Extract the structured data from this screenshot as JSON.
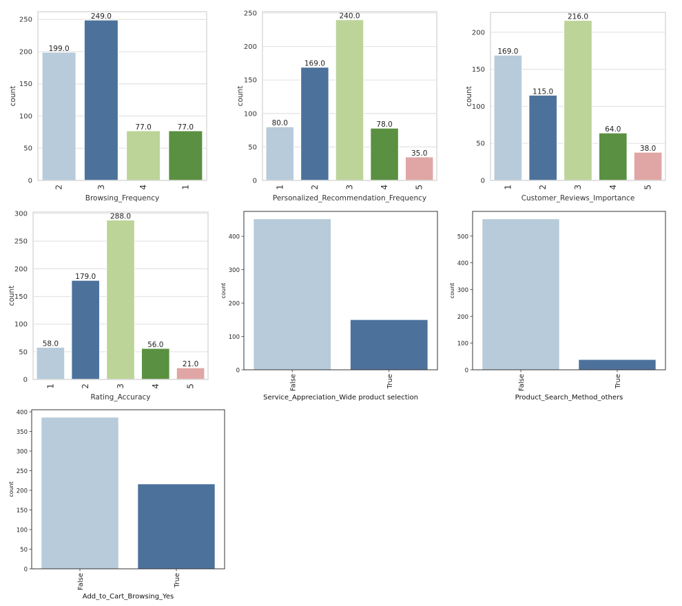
{
  "figure": {
    "colors": {
      "light_blue": "#b7cbda",
      "dark_blue": "#4c729c",
      "light_green": "#bcd498",
      "green": "#5a9041",
      "pink": "#e0a6a5",
      "grid": "#e3e3e3",
      "seaborn_spine": "#dcdcdc",
      "mpl_spine": "#333333"
    }
  },
  "chart_data": [
    {
      "type": "bar",
      "style": "seaborn-whitegrid",
      "title": "",
      "xlabel": "Browsing_Frequency",
      "ylabel": "count",
      "categories": [
        "2",
        "3",
        "4",
        "1"
      ],
      "values": [
        199,
        249,
        77,
        77
      ],
      "data_labels": [
        "199.0",
        "249.0",
        "77.0",
        "77.0"
      ],
      "colors": [
        "#b7cbda",
        "#4c729c",
        "#bcd498",
        "#5a9041"
      ],
      "yticks": [
        0,
        50,
        100,
        150,
        200,
        250
      ],
      "ylim": [
        0,
        262
      ],
      "grid": true
    },
    {
      "type": "bar",
      "style": "seaborn-whitegrid",
      "title": "",
      "xlabel": "Personalized_Recommendation_Frequency",
      "ylabel": "count",
      "categories": [
        "1",
        "2",
        "3",
        "4",
        "5"
      ],
      "values": [
        80,
        169,
        240,
        78,
        35
      ],
      "data_labels": [
        "80.0",
        "169.0",
        "240.0",
        "78.0",
        "35.0"
      ],
      "colors": [
        "#b7cbda",
        "#4c729c",
        "#bcd498",
        "#5a9041",
        "#e0a6a5"
      ],
      "yticks": [
        0,
        50,
        100,
        150,
        200,
        250
      ],
      "ylim": [
        0,
        252
      ],
      "grid": true
    },
    {
      "type": "bar",
      "style": "seaborn-whitegrid",
      "title": "",
      "xlabel": "Customer_Reviews_Importance",
      "ylabel": "count",
      "categories": [
        "1",
        "2",
        "3",
        "4",
        "5"
      ],
      "values": [
        169,
        115,
        216,
        64,
        38
      ],
      "data_labels": [
        "169.0",
        "115.0",
        "216.0",
        "64.0",
        "38.0"
      ],
      "colors": [
        "#b7cbda",
        "#4c729c",
        "#bcd498",
        "#5a9041",
        "#e0a6a5"
      ],
      "yticks": [
        0,
        50,
        100,
        150,
        200
      ],
      "ylim": [
        0,
        226.8
      ],
      "grid": true
    },
    {
      "type": "bar",
      "style": "seaborn-whitegrid",
      "title": "",
      "xlabel": "Rating_Accuracy",
      "ylabel": "count",
      "categories": [
        "1",
        "2",
        "3",
        "4",
        "5"
      ],
      "values": [
        58,
        179,
        288,
        56,
        21
      ],
      "data_labels": [
        "58.0",
        "179.0",
        "288.0",
        "56.0",
        "21.0"
      ],
      "colors": [
        "#b7cbda",
        "#4c729c",
        "#bcd498",
        "#5a9041",
        "#e0a6a5"
      ],
      "yticks": [
        0,
        50,
        100,
        150,
        200,
        250,
        300
      ],
      "ylim": [
        0,
        302.4
      ],
      "grid": true
    },
    {
      "type": "bar",
      "style": "matplotlib-default",
      "title": "",
      "xlabel": "Service_Appreciation_Wide product selection",
      "ylabel": "count",
      "categories": [
        "False",
        "True"
      ],
      "values": [
        452,
        150
      ],
      "colors": [
        "#b7cbda",
        "#4c729c"
      ],
      "yticks": [
        0,
        100,
        200,
        300,
        400
      ],
      "ylim": [
        0,
        474.6
      ],
      "grid": false
    },
    {
      "type": "bar",
      "style": "matplotlib-default",
      "title": "",
      "xlabel": "Product_Search_Method_others",
      "ylabel": "count",
      "categories": [
        "False",
        "True"
      ],
      "values": [
        564,
        38
      ],
      "colors": [
        "#b7cbda",
        "#4c729c"
      ],
      "yticks": [
        0,
        100,
        200,
        300,
        400,
        500
      ],
      "ylim": [
        0,
        592.2
      ],
      "grid": false
    },
    {
      "type": "bar",
      "style": "matplotlib-default",
      "title": "",
      "xlabel": "Add_to_Cart_Browsing_Yes",
      "ylabel": "count",
      "categories": [
        "False",
        "True"
      ],
      "values": [
        386,
        216
      ],
      "colors": [
        "#b7cbda",
        "#4c729c"
      ],
      "yticks": [
        0,
        50,
        100,
        150,
        200,
        250,
        300,
        350,
        400
      ],
      "ylim": [
        0,
        405.3
      ],
      "grid": false
    }
  ]
}
